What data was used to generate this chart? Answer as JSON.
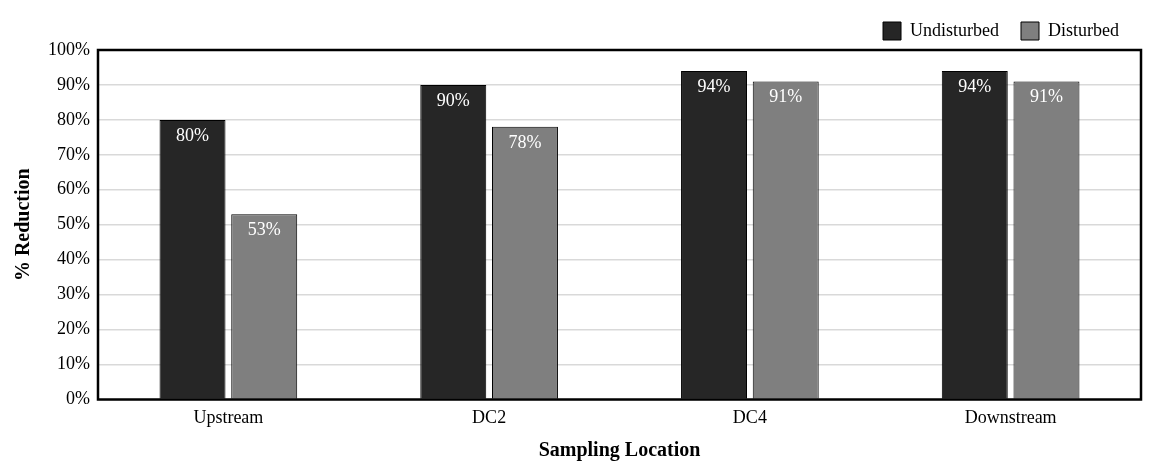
{
  "chart_data": {
    "type": "bar",
    "xlabel": "Sampling Location",
    "ylabel": "% Reduction",
    "categories": [
      "Upstream",
      "DC2",
      "DC4",
      "Downstream"
    ],
    "series": [
      {
        "name": "Undisturbed",
        "color": "#262626",
        "values": [
          80,
          90,
          94,
          94
        ]
      },
      {
        "name": "Disturbed",
        "color": "#7f7f7f",
        "values": [
          53,
          78,
          91,
          91
        ]
      }
    ],
    "ylim": [
      0,
      100
    ],
    "yticks": [
      {
        "value": 0,
        "label": "0%"
      },
      {
        "value": 10,
        "label": "10%"
      },
      {
        "value": 20,
        "label": "20%"
      },
      {
        "value": 30,
        "label": "30%"
      },
      {
        "value": 40,
        "label": "40%"
      },
      {
        "value": 50,
        "label": "50%"
      },
      {
        "value": 60,
        "label": "60%"
      },
      {
        "value": 70,
        "label": "70%"
      },
      {
        "value": 80,
        "label": "80%"
      },
      {
        "value": 90,
        "label": "90%"
      },
      {
        "value": 100,
        "label": "100%"
      }
    ],
    "grid": "y",
    "legend": "top right",
    "value_labels": [
      [
        "80%",
        "90%",
        "94%",
        "94%"
      ],
      [
        "53%",
        "78%",
        "91%",
        "91%"
      ]
    ]
  }
}
